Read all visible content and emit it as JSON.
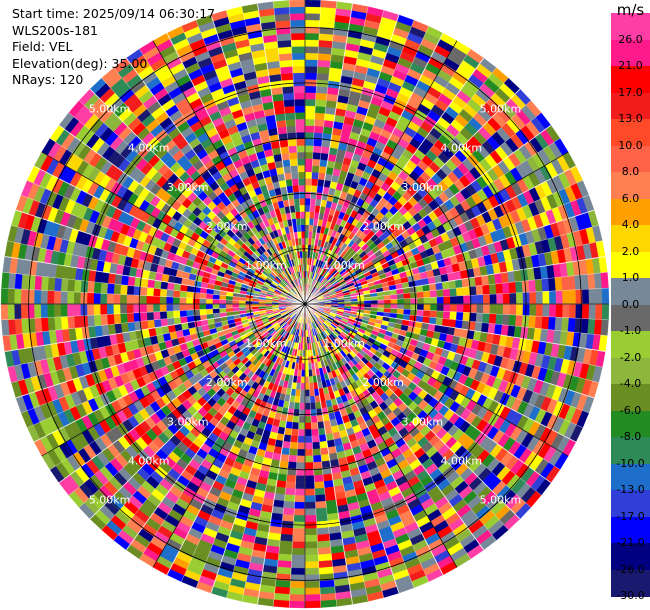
{
  "meta": {
    "start_time": "Start time: 2025/09/14 06:30:17",
    "instrument": "WLS200s-181",
    "field": "Field: VEL",
    "elevation": "Elevation(deg): 35.00",
    "nrays": "NRays: 120"
  },
  "chart_data": {
    "type": "heatmap",
    "projection": "polar-ppi",
    "field": "VEL",
    "units": "m/s",
    "elevation_deg": 35.0,
    "n_rays": 120,
    "max_range_km": 5.5,
    "range_rings_km": [
      1.0,
      2.0,
      3.0,
      4.0,
      5.0
    ],
    "range_ring_labels": [
      "1.00km",
      "2.00km",
      "3.00km",
      "4.00km",
      "5.00km"
    ],
    "colorbar": {
      "unit_label": "m/s",
      "tick_labels": [
        "26.0",
        "21.0",
        "17.0",
        "13.0",
        "10.0",
        "8.0",
        "6.0",
        "4.0",
        "2.0",
        "1.0",
        "0.0",
        "-1.0",
        "-2.0",
        "-4.0",
        "-6.0",
        "-8.0",
        "-10.0",
        "-13.0",
        "-17.0",
        "-21.0",
        "-26.0",
        "-30.0"
      ],
      "bins": [
        {
          "from": 26.0,
          "to": 30.0,
          "color": "#ff3ea5"
        },
        {
          "from": 21.0,
          "to": 26.0,
          "color": "#ff1a8c"
        },
        {
          "from": 17.0,
          "to": 21.0,
          "color": "#ff0000"
        },
        {
          "from": 13.0,
          "to": 17.0,
          "color": "#f21c1c"
        },
        {
          "from": 10.0,
          "to": 13.0,
          "color": "#ff4a2a"
        },
        {
          "from": 8.0,
          "to": 10.0,
          "color": "#ff6347"
        },
        {
          "from": 6.0,
          "to": 8.0,
          "color": "#ff7f50"
        },
        {
          "from": 4.0,
          "to": 6.0,
          "color": "#ff9f00"
        },
        {
          "from": 2.0,
          "to": 4.0,
          "color": "#ffd700"
        },
        {
          "from": 1.0,
          "to": 2.0,
          "color": "#ffff00"
        },
        {
          "from": 0.0,
          "to": 1.0,
          "color": "#778899"
        },
        {
          "from": -1.0,
          "to": 0.0,
          "color": "#696969"
        },
        {
          "from": -2.0,
          "to": -1.0,
          "color": "#9acd32"
        },
        {
          "from": -4.0,
          "to": -2.0,
          "color": "#8db63c"
        },
        {
          "from": -6.0,
          "to": -4.0,
          "color": "#6b8e23"
        },
        {
          "from": -8.0,
          "to": -6.0,
          "color": "#228b22"
        },
        {
          "from": -10.0,
          "to": -8.0,
          "color": "#2e8b57"
        },
        {
          "from": -13.0,
          "to": -10.0,
          "color": "#1e6fcc"
        },
        {
          "from": -17.0,
          "to": -13.0,
          "color": "#2f3fd8"
        },
        {
          "from": -21.0,
          "to": -17.0,
          "color": "#0000ff"
        },
        {
          "from": -26.0,
          "to": -21.0,
          "color": "#000080"
        },
        {
          "from": -30.0,
          "to": -26.0,
          "color": "#191970"
        }
      ]
    }
  }
}
